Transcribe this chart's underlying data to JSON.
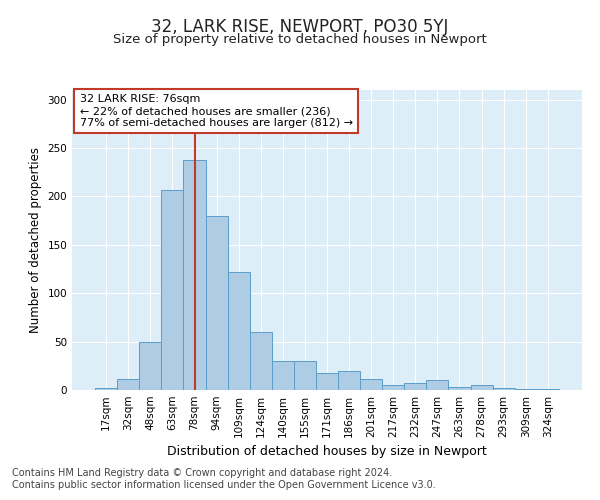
{
  "title": "32, LARK RISE, NEWPORT, PO30 5YJ",
  "subtitle": "Size of property relative to detached houses in Newport",
  "xlabel": "Distribution of detached houses by size in Newport",
  "ylabel": "Number of detached properties",
  "categories": [
    "17sqm",
    "32sqm",
    "48sqm",
    "63sqm",
    "78sqm",
    "94sqm",
    "109sqm",
    "124sqm",
    "140sqm",
    "155sqm",
    "171sqm",
    "186sqm",
    "201sqm",
    "217sqm",
    "232sqm",
    "247sqm",
    "263sqm",
    "278sqm",
    "293sqm",
    "309sqm",
    "324sqm"
  ],
  "values": [
    2,
    11,
    50,
    207,
    238,
    180,
    122,
    60,
    30,
    30,
    18,
    20,
    11,
    5,
    7,
    10,
    3,
    5,
    2,
    1,
    1
  ],
  "bar_color": "#aecce4",
  "bar_edge_color": "#5b9dc9",
  "vline_x_index": 4,
  "vline_color": "#c0392b",
  "annotation_text": "32 LARK RISE: 76sqm\n← 22% of detached houses are smaller (236)\n77% of semi-detached houses are larger (812) →",
  "annotation_box_color": "#ffffff",
  "annotation_box_edge": "#c0392b",
  "ylim": [
    0,
    310
  ],
  "yticks": [
    0,
    50,
    100,
    150,
    200,
    250,
    300
  ],
  "background_color": "#ddeef8",
  "grid_color": "#ffffff",
  "footer_line1": "Contains HM Land Registry data © Crown copyright and database right 2024.",
  "footer_line2": "Contains public sector information licensed under the Open Government Licence v3.0.",
  "title_fontsize": 12,
  "subtitle_fontsize": 9.5,
  "xlabel_fontsize": 9,
  "ylabel_fontsize": 8.5,
  "tick_fontsize": 7.5,
  "annotation_fontsize": 8,
  "footer_fontsize": 7
}
